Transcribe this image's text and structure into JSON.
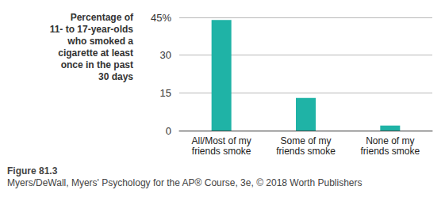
{
  "chart_data": {
    "type": "bar",
    "title": "Figure 81.3",
    "subtitle": "Myers/DeWall, Myers' Psychology for the AP® Course, 3e, © 2018 Worth Publishers",
    "y_label": "Percentage of\n11- to 17-year-olds\nwho smoked a\ncigarette at least\nonce in the past\n30 days",
    "categories": [
      "All/Most of my\nfriends smoke",
      "Some of my\nfriends smoke",
      "None of my\nfriends smoke"
    ],
    "values": [
      44,
      13,
      2
    ],
    "color": "#1fb3a6",
    "ylim": [
      0,
      45
    ],
    "yticks": [
      0,
      15,
      30,
      {
        "value": 45,
        "label": "45%"
      }
    ],
    "grid": true
  }
}
